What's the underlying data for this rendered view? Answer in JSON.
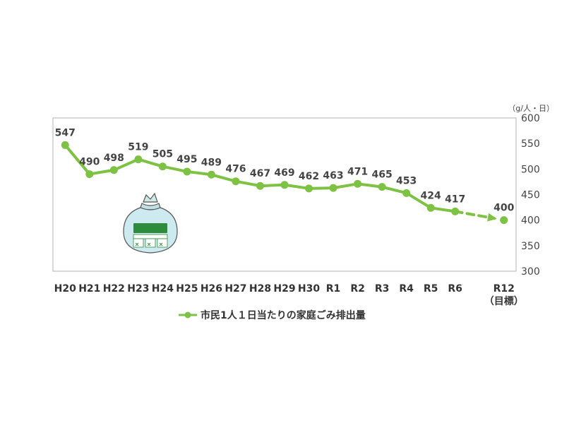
{
  "chart_data": {
    "type": "line",
    "unit_label": "（g/人・日）",
    "categories": [
      "H20",
      "H21",
      "H22",
      "H23",
      "H24",
      "H25",
      "H26",
      "H27",
      "H28",
      "H29",
      "H30",
      "R1",
      "R2",
      "R3",
      "R4",
      "R5",
      "R6",
      "",
      "R12"
    ],
    "target_sublabel": "（目標）",
    "ylim": [
      300,
      600
    ],
    "yticks": [
      300,
      350,
      400,
      450,
      500,
      550,
      600
    ],
    "grid": false,
    "legend_position": "bottom",
    "series": [
      {
        "name": "市民1人１日当たりの家庭ごみ排出量",
        "color": "#7dc242",
        "values": [
          547,
          490,
          498,
          519,
          505,
          495,
          489,
          476,
          467,
          469,
          462,
          463,
          471,
          465,
          453,
          424,
          417,
          null,
          400
        ],
        "target_index": 18
      }
    ]
  },
  "legend": {
    "label": "市民1人１日当たりの家庭ごみ排出量"
  },
  "icon": {
    "name": "garbage-bag-icon"
  }
}
